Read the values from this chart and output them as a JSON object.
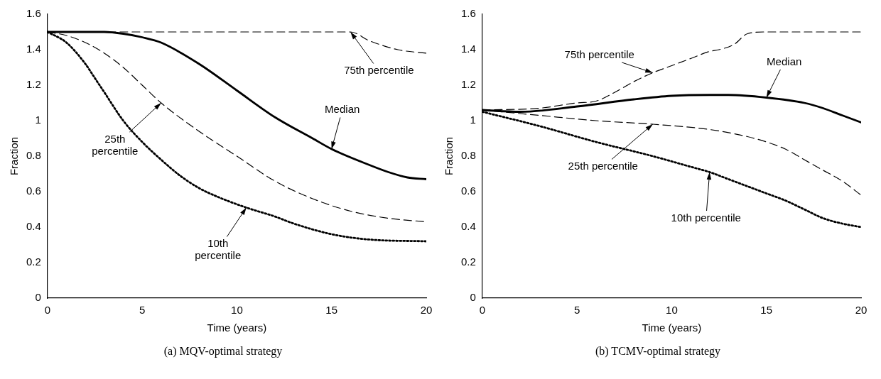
{
  "chart_data": [
    {
      "type": "line",
      "title": "(a) MQV-optimal strategy",
      "xlabel": "Time (years)",
      "ylabel": "Fraction",
      "xlim": [
        0,
        20
      ],
      "xticks": [
        0,
        5,
        10,
        15,
        20
      ],
      "ylim": [
        0,
        1.6
      ],
      "yticks": [
        0,
        0.2,
        0.4,
        0.6,
        0.8,
        1,
        1.2,
        1.4,
        1.6
      ],
      "grid": false,
      "legend": false,
      "series": [
        {
          "color": "#000000",
          "line_style": "dashed",
          "x": [
            0,
            4,
            8,
            12,
            15,
            16,
            17,
            18.5,
            20
          ],
          "values": [
            1.5,
            1.5,
            1.5,
            1.5,
            1.5,
            1.5,
            1.45,
            1.4,
            1.38
          ]
        },
        {
          "color": "#000000",
          "line_style": "solid",
          "x": [
            0,
            2,
            3,
            4,
            5,
            6,
            8,
            10,
            12,
            14,
            15,
            17,
            18,
            19,
            20
          ],
          "values": [
            1.5,
            1.5,
            1.5,
            1.49,
            1.47,
            1.44,
            1.32,
            1.17,
            1.02,
            0.9,
            0.84,
            0.75,
            0.71,
            0.68,
            0.67
          ]
        },
        {
          "color": "#000000",
          "line_style": "dashed",
          "x": [
            0,
            1,
            2,
            3,
            4,
            5,
            6,
            8,
            10,
            12,
            14,
            16,
            18,
            20
          ],
          "values": [
            1.5,
            1.48,
            1.44,
            1.38,
            1.3,
            1.2,
            1.1,
            0.94,
            0.8,
            0.66,
            0.56,
            0.49,
            0.45,
            0.43
          ]
        },
        {
          "color": "#000000",
          "line_style": "dotted",
          "x": [
            0,
            1,
            2,
            2.5,
            3,
            4,
            5,
            6,
            7,
            8,
            9,
            10.5,
            12,
            13,
            15,
            17,
            20
          ],
          "values": [
            1.5,
            1.44,
            1.32,
            1.24,
            1.16,
            1.0,
            0.88,
            0.78,
            0.69,
            0.62,
            0.57,
            0.51,
            0.46,
            0.42,
            0.36,
            0.33,
            0.32
          ]
        }
      ],
      "annotations": [
        {
          "text": "75th percentile",
          "x": 16,
          "y": 1.5
        },
        {
          "text": "Median",
          "x": 15,
          "y": 0.84
        },
        {
          "text": "25th\npercentile",
          "x": 6,
          "y": 1.1
        },
        {
          "text": "10th\npercentile",
          "x": 10.5,
          "y": 0.51
        }
      ]
    },
    {
      "type": "line",
      "title": "(b) TCMV-optimal strategy",
      "xlabel": "Time (years)",
      "ylabel": "Fraction",
      "xlim": [
        0,
        20
      ],
      "xticks": [
        0,
        5,
        10,
        15,
        20
      ],
      "ylim": [
        0,
        1.6
      ],
      "yticks": [
        0,
        0.2,
        0.4,
        0.6,
        0.8,
        1,
        1.2,
        1.4,
        1.6
      ],
      "grid": false,
      "legend": false,
      "series": [
        {
          "color": "#000000",
          "line_style": "dashed",
          "x": [
            0,
            3,
            5,
            6,
            7,
            8,
            9,
            10,
            11,
            12,
            12.5,
            13.3,
            14,
            15,
            20
          ],
          "values": [
            1.06,
            1.07,
            1.1,
            1.11,
            1.16,
            1.22,
            1.27,
            1.31,
            1.35,
            1.39,
            1.4,
            1.43,
            1.49,
            1.5,
            1.5
          ]
        },
        {
          "color": "#000000",
          "line_style": "solid",
          "x": [
            0,
            2,
            5,
            8,
            10,
            12,
            13,
            15,
            17,
            18,
            19,
            20
          ],
          "values": [
            1.06,
            1.05,
            1.08,
            1.12,
            1.14,
            1.145,
            1.145,
            1.13,
            1.1,
            1.07,
            1.03,
            0.99
          ]
        },
        {
          "color": "#000000",
          "line_style": "dashed",
          "x": [
            0,
            3,
            6,
            9,
            12,
            14,
            15,
            16,
            17,
            18,
            19,
            20
          ],
          "values": [
            1.06,
            1.03,
            1.0,
            0.98,
            0.95,
            0.91,
            0.88,
            0.84,
            0.78,
            0.72,
            0.66,
            0.58
          ]
        },
        {
          "color": "#000000",
          "line_style": "dotted",
          "x": [
            0,
            3,
            6,
            9,
            11,
            12,
            13,
            14,
            15,
            16,
            17,
            18,
            19,
            20
          ],
          "values": [
            1.05,
            0.97,
            0.88,
            0.8,
            0.74,
            0.71,
            0.67,
            0.63,
            0.59,
            0.55,
            0.5,
            0.45,
            0.42,
            0.4
          ]
        }
      ],
      "annotations": [
        {
          "text": "75th percentile",
          "x": 9,
          "y": 1.27
        },
        {
          "text": "Median",
          "x": 15,
          "y": 1.13
        },
        {
          "text": "25th percentile",
          "x": 9,
          "y": 0.98
        },
        {
          "text": "10th percentile",
          "x": 12,
          "y": 0.71
        }
      ]
    }
  ]
}
